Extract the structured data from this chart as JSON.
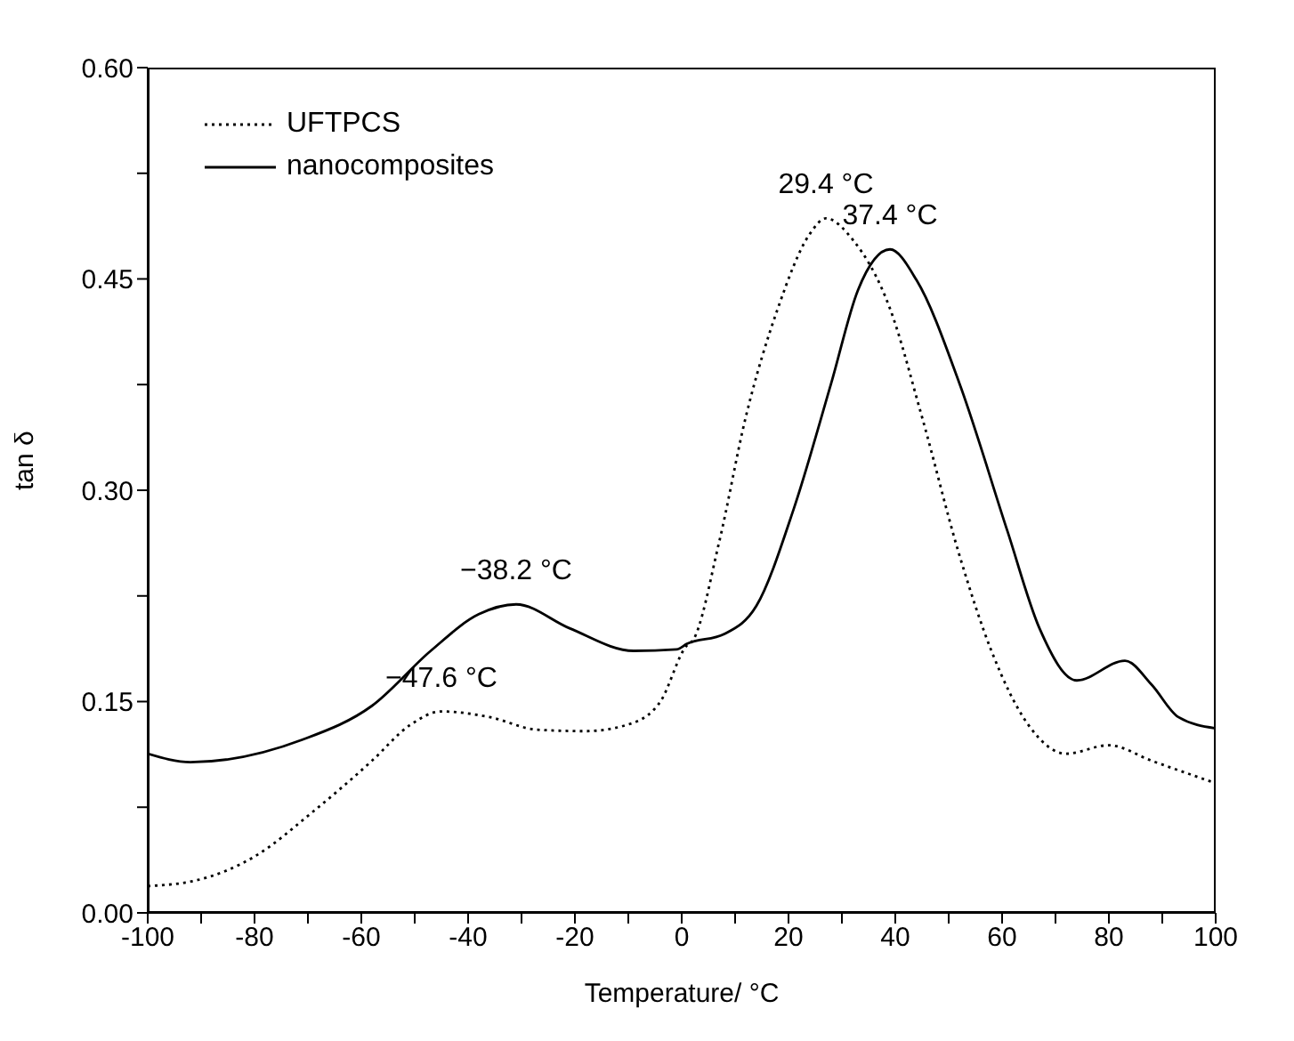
{
  "chart_data": {
    "type": "line",
    "xlabel": "Temperature/ °C",
    "ylabel": "tan δ",
    "xlim": [
      -100,
      100
    ],
    "ylim": [
      0,
      0.6
    ],
    "xticks": [
      -100,
      {
        "value": -90,
        "label": null
      },
      -80,
      {
        "value": -70,
        "label": null
      },
      -60,
      {
        "value": -50,
        "label": null
      },
      -40,
      {
        "value": -30,
        "label": null
      },
      -20,
      {
        "value": -10,
        "label": null
      },
      0,
      {
        "value": 10,
        "label": null
      },
      20,
      {
        "value": 30,
        "label": null
      },
      40,
      {
        "value": 50,
        "label": null
      },
      60,
      {
        "value": 70,
        "label": null
      },
      80,
      {
        "value": 90,
        "label": null
      },
      100
    ],
    "yticks": [
      {
        "value": 0,
        "label": "0.00"
      },
      {
        "value": 0.075,
        "label": null
      },
      {
        "value": 0.15,
        "label": "0.15"
      },
      {
        "value": 0.225,
        "label": null
      },
      {
        "value": 0.3,
        "label": "0.30"
      },
      {
        "value": 0.375,
        "label": null
      },
      {
        "value": 0.45,
        "label": "0.45"
      },
      {
        "value": 0.525,
        "label": null
      },
      {
        "value": 0.6,
        "label": "0.60"
      }
    ],
    "grid": false,
    "legend": "top left",
    "marker": "none",
    "series": [
      {
        "name": "UFTPCS",
        "color": "#000000",
        "line_style": "dotted",
        "x": [
          -100,
          -91,
          -80,
          -69,
          -58,
          -51,
          -45,
          -36,
          -27,
          -18,
          -9,
          -4,
          1,
          2,
          7,
          12,
          18,
          24,
          27,
          32,
          39,
          45,
          52,
          58,
          65,
          72,
          80,
          88,
          100
        ],
        "values": [
          0.019,
          0.023,
          0.04,
          0.072,
          0.108,
          0.133,
          0.143,
          0.139,
          0.13,
          0.129,
          0.135,
          0.15,
          0.19,
          0.193,
          0.263,
          0.352,
          0.429,
          0.482,
          0.493,
          0.478,
          0.429,
          0.352,
          0.254,
          0.186,
          0.133,
          0.113,
          0.119,
          0.108,
          0.092
        ]
      },
      {
        "name": "nanocomposites",
        "color": "#000000",
        "line_style": "solid",
        "x": [
          -100,
          -92,
          -71,
          -58,
          -47,
          -38,
          -31,
          -21,
          -9,
          -1,
          1,
          8,
          14,
          21,
          28,
          33,
          39,
          44,
          52,
          61,
          67,
          74,
          83,
          88,
          93,
          100
        ],
        "values": [
          0.113,
          0.107,
          0.123,
          0.147,
          0.186,
          0.212,
          0.219,
          0.202,
          0.186,
          0.187,
          0.191,
          0.198,
          0.218,
          0.287,
          0.376,
          0.442,
          0.471,
          0.449,
          0.376,
          0.271,
          0.202,
          0.165,
          0.179,
          0.162,
          0.139,
          0.131
        ]
      }
    ],
    "annotations": [
      {
        "text": "−38.2 °C",
        "x": -31,
        "y": 0.219
      },
      {
        "text": "−47.6 °C",
        "x": -45,
        "y": 0.143
      },
      {
        "text": "29.4 °C",
        "x": 27,
        "y": 0.493
      },
      {
        "text": "37.4 °C",
        "x": 39,
        "y": 0.471
      }
    ]
  }
}
